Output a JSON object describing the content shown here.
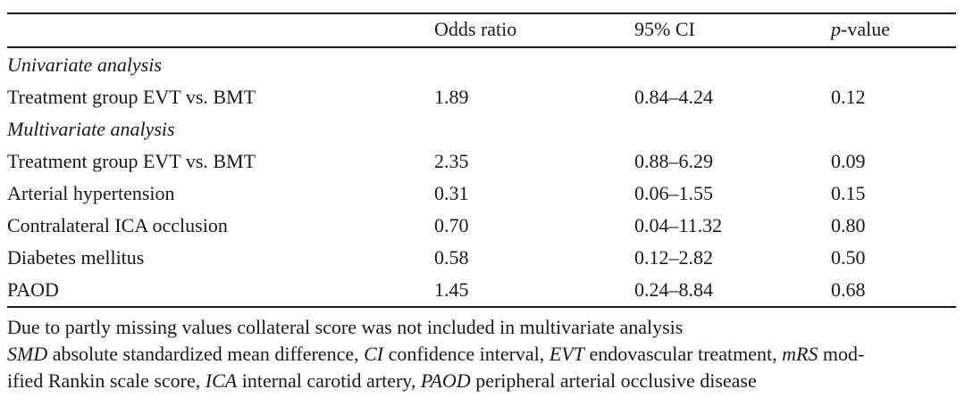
{
  "table": {
    "headers": [
      "",
      "Odds ratio",
      "95% CI",
      "p-value"
    ],
    "header_p_italic": "p",
    "header_p_rest": "-value",
    "sections": [
      {
        "title": "Univariate analysis",
        "rows": [
          [
            "Treatment group EVT vs. BMT",
            "1.89",
            "0.84–4.24",
            "0.12"
          ]
        ]
      },
      {
        "title": "Multivariate analysis",
        "rows": [
          [
            "Treatment group EVT vs. BMT",
            "2.35",
            "0.88–6.29",
            "0.09"
          ],
          [
            "Arterial hypertension",
            "0.31",
            "0.06–1.55",
            "0.15"
          ],
          [
            "Contralateral ICA occlusion",
            "0.70",
            "0.04–11.32",
            "0.80"
          ],
          [
            "Diabetes mellitus",
            "0.58",
            "0.12–2.82",
            "0.50"
          ],
          [
            "PAOD",
            "1.45",
            "0.24–8.84",
            "0.68"
          ]
        ]
      }
    ]
  },
  "footnotes": {
    "line1": "Due to partly missing values collateral score was not included in multivariate analysis",
    "abbr": [
      {
        "term": "SMD",
        "def": " absolute standardized mean difference, "
      },
      {
        "term": "CI",
        "def": " confidence interval, "
      },
      {
        "term": "EVT",
        "def": " endovascular treatment, "
      },
      {
        "term": "mRS",
        "def": " mod-"
      },
      {
        "term": "",
        "def": "ified Rankin scale score, "
      },
      {
        "term": "ICA",
        "def": " internal carotid artery, "
      },
      {
        "term": "PAOD",
        "def": " peripheral arterial occlusive disease"
      }
    ]
  }
}
